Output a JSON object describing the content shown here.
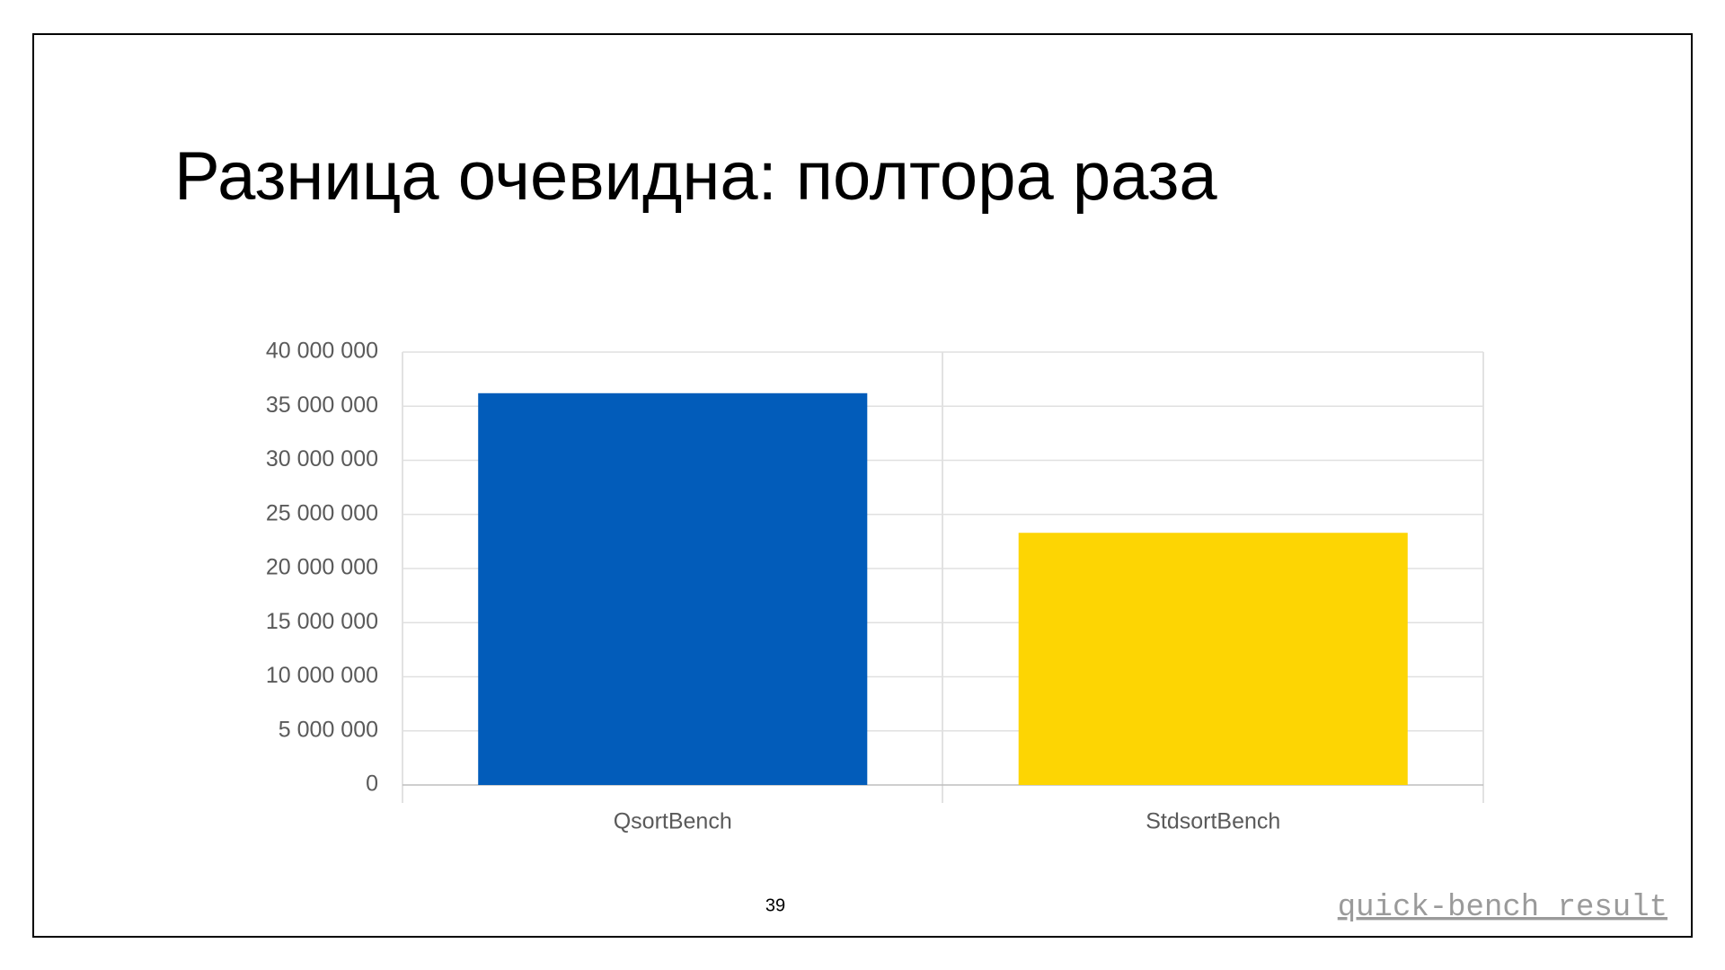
{
  "slide": {
    "title": "Разница очевидна: полтора раза",
    "page_number": "39",
    "link": "quick-bench result"
  },
  "chart_data": {
    "type": "bar",
    "categories": [
      "QsortBench",
      "StdsortBench"
    ],
    "series": [
      {
        "name": "QsortBench",
        "color": "#025cba",
        "values": [
          36200000,
          null
        ]
      },
      {
        "name": "StdsortBench",
        "color": "#fdd503",
        "values": [
          null,
          23300000
        ]
      }
    ],
    "ylim": [
      0,
      40000000
    ],
    "yticks": [
      {
        "value": 0,
        "label": "0"
      },
      {
        "value": 5000000,
        "label": "5 000 000"
      },
      {
        "value": 10000000,
        "label": "10 000 000"
      },
      {
        "value": 15000000,
        "label": "15 000 000"
      },
      {
        "value": 20000000,
        "label": "20 000 000"
      },
      {
        "value": 25000000,
        "label": "25 000 000"
      },
      {
        "value": 30000000,
        "label": "30 000 000"
      },
      {
        "value": 35000000,
        "label": "35 000 000"
      },
      {
        "value": 40000000,
        "label": "40 000 000"
      }
    ],
    "grid": true
  }
}
